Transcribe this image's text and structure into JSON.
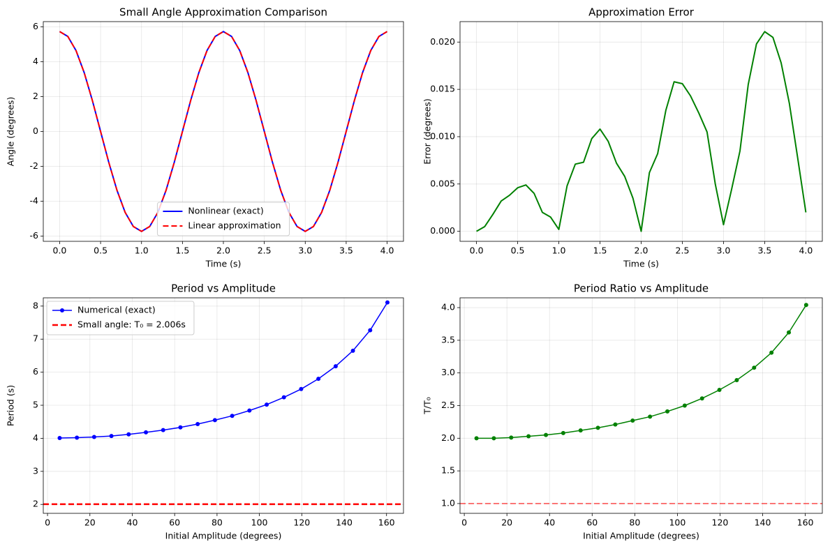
{
  "chart_data": [
    {
      "type": "line",
      "title": "Small Angle Approximation Comparison",
      "xlabel": "Time (s)",
      "ylabel": "Angle (degrees)",
      "x": [
        0,
        0.1,
        0.2,
        0.3,
        0.4,
        0.5,
        0.6,
        0.7,
        0.8,
        0.9,
        1,
        1.1,
        1.2,
        1.3,
        1.4,
        1.5,
        1.6,
        1.7,
        1.8,
        1.9,
        2,
        2.1,
        2.2,
        2.3,
        2.4,
        2.5,
        2.6,
        2.7,
        2.8,
        2.9,
        3,
        3.1,
        3.2,
        3.3,
        3.4,
        3.5,
        3.6,
        3.7,
        3.8,
        3.9,
        4
      ],
      "series": [
        {
          "name": "Nonlinear (exact)",
          "color": "#0000ff",
          "linestyle": "solid",
          "linewidth": 2,
          "values": [
            5.73,
            5.45,
            4.64,
            3.37,
            1.77,
            0,
            -1.77,
            -3.37,
            -4.64,
            -5.45,
            -5.73,
            -5.45,
            -4.64,
            -3.37,
            -1.77,
            0,
            1.77,
            3.37,
            4.64,
            5.45,
            5.73,
            5.45,
            4.64,
            3.37,
            1.77,
            0,
            -1.77,
            -3.37,
            -4.64,
            -5.45,
            -5.73,
            -5.45,
            -4.64,
            -3.37,
            -1.77,
            0,
            1.77,
            3.37,
            4.64,
            5.45,
            5.73
          ]
        },
        {
          "name": "Linear approximation",
          "color": "#ff0000",
          "linestyle": "dashed",
          "linewidth": 2,
          "values": [
            5.73,
            5.45,
            4.64,
            3.37,
            1.77,
            0,
            -1.77,
            -3.37,
            -4.64,
            -5.45,
            -5.73,
            -5.45,
            -4.64,
            -3.37,
            -1.77,
            0,
            1.77,
            3.37,
            4.64,
            5.45,
            5.73,
            5.45,
            4.64,
            3.37,
            1.77,
            0,
            -1.77,
            -3.37,
            -4.64,
            -5.45,
            -5.73,
            -5.45,
            -4.64,
            -3.37,
            -1.77,
            0,
            1.77,
            3.37,
            4.64,
            5.45,
            5.73
          ]
        }
      ],
      "xlim": [
        -0.2,
        4.2
      ],
      "ylim": [
        -6.3,
        6.3
      ],
      "xticks": [
        {
          "value": 0,
          "label": "0.0"
        },
        0.5,
        {
          "value": 1,
          "label": "1.0"
        },
        1.5,
        {
          "value": 2,
          "label": "2.0"
        },
        2.5,
        {
          "value": 3,
          "label": "3.0"
        },
        3.5,
        {
          "value": 4,
          "label": "4.0"
        }
      ],
      "yticks": [
        -6,
        -4,
        -2,
        0,
        2,
        4,
        6
      ],
      "grid": true,
      "legend": "lower center"
    },
    {
      "type": "line",
      "title": "Approximation Error",
      "xlabel": "Time (s)",
      "ylabel": "Error (degrees)",
      "x": [
        0,
        0.1,
        0.2,
        0.3,
        0.4,
        0.5,
        0.6,
        0.7,
        0.8,
        0.9,
        1,
        1.1,
        1.2,
        1.3,
        1.4,
        1.5,
        1.6,
        1.7,
        1.8,
        1.9,
        2,
        2.1,
        2.2,
        2.3,
        2.4,
        2.5,
        2.6,
        2.7,
        2.8,
        2.9,
        3,
        3.1,
        3.2,
        3.3,
        3.4,
        3.5,
        3.6,
        3.7,
        3.8,
        3.9,
        4
      ],
      "series": [
        {
          "color": "#008000",
          "linestyle": "solid",
          "linewidth": 2,
          "values": [
            0,
            0.0005,
            0.0018,
            0.0032,
            0.0038,
            0.0046,
            0.0049,
            0.004,
            0.002,
            0.0015,
            0.0002,
            0.0048,
            0.0071,
            0.0073,
            0.0098,
            0.0108,
            0.0095,
            0.0072,
            0.0058,
            0.0035,
            0,
            0.0062,
            0.0082,
            0.0128,
            0.0158,
            0.0156,
            0.0143,
            0.0125,
            0.0105,
            0.005,
            0.0007,
            0.0045,
            0.0085,
            0.0155,
            0.0198,
            0.0211,
            0.0205,
            0.0178,
            0.0135,
            0.0078,
            0.002
          ]
        }
      ],
      "xlim": [
        -0.2,
        4.2
      ],
      "ylim": [
        -0.00106,
        0.02216
      ],
      "xticks": [
        {
          "value": 0,
          "label": "0.0"
        },
        0.5,
        {
          "value": 1,
          "label": "1.0"
        },
        1.5,
        {
          "value": 2,
          "label": "2.0"
        },
        2.5,
        {
          "value": 3,
          "label": "3.0"
        },
        3.5,
        {
          "value": 4,
          "label": "4.0"
        }
      ],
      "yticks": [
        {
          "value": 0,
          "label": "0.000"
        },
        0.005,
        {
          "value": 0.01,
          "label": "0.010"
        },
        0.015,
        {
          "value": 0.02,
          "label": "0.020"
        }
      ],
      "grid": true
    },
    {
      "type": "line",
      "title": "Period vs Amplitude",
      "xlabel": "Initial Amplitude (degrees)",
      "ylabel": "Period (s)",
      "x": [
        5.73,
        13.87,
        22.01,
        30.15,
        38.3,
        46.44,
        54.58,
        62.72,
        70.86,
        79,
        87.15,
        95.29,
        103.43,
        111.57,
        119.71,
        127.85,
        136,
        144.14,
        152.28,
        160.42
      ],
      "series": [
        {
          "name": "Numerical (exact)",
          "color": "#0000ff",
          "linestyle": "solid",
          "linewidth": 1.5,
          "marker": "o",
          "values": [
            4.01,
            4.02,
            4.04,
            4.07,
            4.12,
            4.18,
            4.25,
            4.33,
            4.43,
            4.55,
            4.68,
            4.84,
            5.02,
            5.24,
            5.49,
            5.8,
            6.18,
            6.65,
            7.27,
            8.11
          ]
        }
      ],
      "hlines": [
        {
          "name": "Small angle: T₀ = 2.006s",
          "value": 2.006,
          "color": "#ff0000",
          "linestyle": "dashed",
          "linewidth": 2.5
        }
      ],
      "xlim": [
        -2,
        168
      ],
      "ylim": [
        1.73,
        8.25
      ],
      "xticks": [
        0,
        20,
        40,
        60,
        80,
        100,
        120,
        140,
        160
      ],
      "yticks": [
        2,
        3,
        4,
        5,
        6,
        7,
        8
      ],
      "grid": true,
      "legend": "upper left"
    },
    {
      "type": "line",
      "title": "Period Ratio vs Amplitude",
      "xlabel": "Initial Amplitude (degrees)",
      "ylabel": "T/T₀",
      "x": [
        5.73,
        13.87,
        22.01,
        30.15,
        38.3,
        46.44,
        54.58,
        62.72,
        70.86,
        79,
        87.15,
        95.29,
        103.43,
        111.57,
        119.71,
        127.85,
        136,
        144.14,
        152.28,
        160.42
      ],
      "series": [
        {
          "color": "#008000",
          "linestyle": "solid",
          "linewidth": 1.5,
          "marker": "o",
          "values": [
            2,
            2,
            2.01,
            2.03,
            2.05,
            2.08,
            2.12,
            2.16,
            2.21,
            2.27,
            2.33,
            2.41,
            2.5,
            2.61,
            2.74,
            2.89,
            3.08,
            3.31,
            3.62,
            4.04
          ]
        }
      ],
      "hlines": [
        {
          "value": 1,
          "color": "#ff0000",
          "linestyle": "dashed",
          "linewidth": 1.5,
          "alpha": 0.7
        }
      ],
      "xlim": [
        -2,
        168
      ],
      "ylim": [
        0.85,
        4.15
      ],
      "xticks": [
        0,
        20,
        40,
        60,
        80,
        100,
        120,
        140,
        160
      ],
      "yticks": [
        {
          "value": 1,
          "label": "1.0"
        },
        1.5,
        {
          "value": 2,
          "label": "2.0"
        },
        2.5,
        {
          "value": 3,
          "label": "3.0"
        },
        3.5,
        {
          "value": 4,
          "label": "4.0"
        }
      ],
      "grid": true
    }
  ]
}
